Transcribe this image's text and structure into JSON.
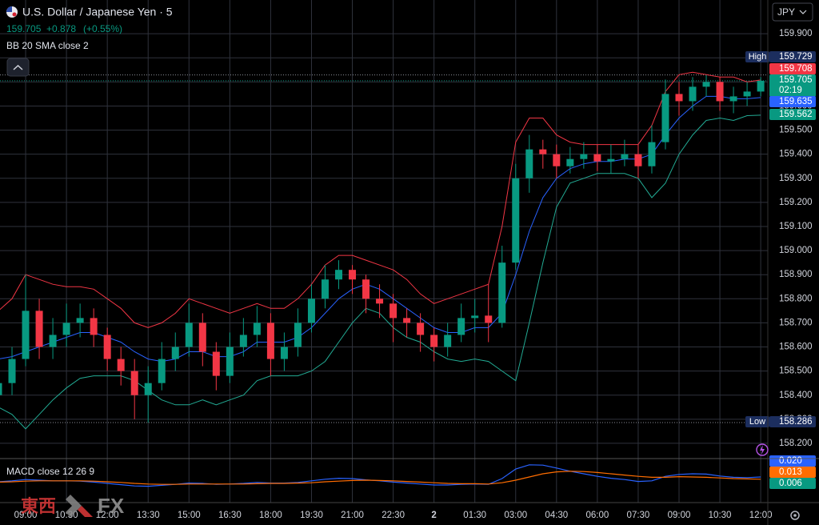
{
  "header": {
    "price": "159.705",
    "change": "+0.878",
    "change_pct": "(+0.55%)",
    "indicator": "BB 20 SMA close 2",
    "currency": "JPY",
    "watermark": "東西",
    "watermark_fx": "FX"
  },
  "chart_data": {
    "type": "candlestick",
    "title": "U.S. Dollar / Japanese Yen · 5",
    "up_color": "#089981",
    "down_color": "#f23645",
    "grid": true,
    "ylim": [
      158.14,
      160.04
    ],
    "yticks": [
      {
        "value": 158.2,
        "label": "158.200"
      },
      {
        "value": 158.3,
        "label": "158.300"
      },
      {
        "value": 158.4,
        "label": "158.400"
      },
      {
        "value": 158.5,
        "label": "158.500"
      },
      {
        "value": 158.6,
        "label": "158.600"
      },
      {
        "value": 158.7,
        "label": "158.700"
      },
      {
        "value": 158.8,
        "label": "158.800"
      },
      {
        "value": 158.9,
        "label": "158.900"
      },
      {
        "value": 159.0,
        "label": "159.000"
      },
      {
        "value": 159.1,
        "label": "159.100"
      },
      {
        "value": 159.2,
        "label": "159.200"
      },
      {
        "value": 159.3,
        "label": "159.300"
      },
      {
        "value": 159.4,
        "label": "159.400"
      },
      {
        "value": 159.5,
        "label": "159.500"
      },
      {
        "value": 159.6,
        "label": "159.600"
      },
      {
        "value": 159.7,
        "label": "159.700"
      },
      {
        "value": 159.8,
        "label": "159.800"
      },
      {
        "value": 159.9,
        "label": "159.900"
      }
    ],
    "categories": [
      null,
      null,
      "09:00",
      null,
      null,
      "10:30",
      null,
      null,
      "12:00",
      null,
      null,
      "13:30",
      null,
      null,
      "15:00",
      null,
      null,
      "16:30",
      null,
      null,
      "18:00",
      null,
      null,
      "19:30",
      null,
      null,
      "21:00",
      null,
      null,
      "22:30",
      null,
      null,
      "2",
      null,
      null,
      "01:30",
      null,
      null,
      "03:00",
      null,
      null,
      "04:30",
      null,
      null,
      "06:00",
      null,
      null,
      "07:30",
      null,
      null,
      "09:00",
      null,
      null,
      "10:30",
      null,
      null,
      "12:00"
    ],
    "open": [
      158.4,
      158.45,
      158.55,
      158.75,
      158.6,
      158.65,
      158.7,
      158.72,
      158.65,
      158.55,
      158.5,
      158.4,
      158.45,
      158.55,
      158.6,
      158.7,
      158.58,
      158.48,
      158.6,
      158.65,
      158.7,
      158.55,
      158.6,
      158.7,
      158.8,
      158.88,
      158.92,
      158.88,
      158.8,
      158.78,
      158.72,
      158.7,
      158.65,
      158.6,
      158.65,
      158.72,
      158.73,
      158.7,
      158.95,
      159.3,
      159.42,
      159.4,
      159.35,
      159.38,
      159.4,
      159.37,
      159.38,
      159.4,
      159.35,
      159.45,
      159.65,
      159.62,
      159.68,
      159.7,
      159.62,
      159.64,
      159.66
    ],
    "high": [
      158.5,
      158.6,
      158.9,
      158.8,
      158.72,
      158.78,
      158.78,
      158.76,
      158.68,
      158.6,
      158.55,
      158.52,
      158.62,
      158.66,
      158.78,
      158.74,
      158.62,
      158.66,
      158.72,
      158.77,
      158.74,
      158.66,
      158.76,
      158.86,
      158.94,
      158.96,
      158.94,
      158.9,
      158.86,
      158.82,
      158.76,
      158.74,
      158.68,
      158.7,
      158.78,
      158.8,
      158.86,
      159.02,
      159.36,
      159.48,
      159.46,
      159.44,
      159.43,
      159.45,
      159.44,
      159.44,
      159.46,
      159.44,
      159.52,
      159.71,
      159.7,
      159.72,
      159.729,
      159.72,
      159.68,
      159.7,
      159.72
    ],
    "low": [
      158.35,
      158.4,
      158.52,
      158.55,
      158.55,
      158.6,
      158.64,
      158.6,
      158.5,
      158.44,
      158.3,
      158.286,
      158.42,
      158.5,
      158.56,
      158.52,
      158.42,
      158.45,
      158.56,
      158.6,
      158.48,
      158.5,
      158.56,
      158.66,
      158.76,
      158.84,
      158.82,
      158.74,
      158.72,
      158.62,
      158.64,
      158.58,
      158.54,
      158.56,
      158.62,
      158.66,
      158.62,
      158.68,
      158.92,
      159.24,
      159.34,
      159.3,
      159.32,
      159.34,
      159.33,
      159.32,
      159.35,
      159.3,
      159.32,
      159.42,
      159.56,
      159.58,
      159.64,
      159.58,
      159.57,
      159.6,
      159.64
    ],
    "close": [
      158.45,
      158.55,
      158.75,
      158.6,
      158.65,
      158.7,
      158.72,
      158.65,
      158.55,
      158.5,
      158.4,
      158.45,
      158.55,
      158.6,
      158.7,
      158.58,
      158.48,
      158.6,
      158.65,
      158.7,
      158.55,
      158.6,
      158.7,
      158.8,
      158.88,
      158.92,
      158.88,
      158.8,
      158.78,
      158.72,
      158.7,
      158.65,
      158.6,
      158.65,
      158.72,
      158.73,
      158.7,
      158.95,
      159.3,
      159.42,
      159.4,
      159.35,
      159.38,
      159.4,
      159.37,
      159.38,
      159.4,
      159.35,
      159.45,
      159.65,
      159.62,
      159.68,
      159.7,
      159.62,
      159.64,
      159.66,
      159.705
    ],
    "bb": {
      "series": [
        {
          "color": "#2962ff",
          "values": [
            158.55,
            158.56,
            158.58,
            158.6,
            158.62,
            158.64,
            158.66,
            158.66,
            158.64,
            158.62,
            158.58,
            158.55,
            158.54,
            158.55,
            158.58,
            158.58,
            158.56,
            158.56,
            158.58,
            158.62,
            158.62,
            158.62,
            158.64,
            158.68,
            158.74,
            158.8,
            158.84,
            158.86,
            158.84,
            158.8,
            158.76,
            158.72,
            158.68,
            158.66,
            158.66,
            158.68,
            158.68,
            158.74,
            158.9,
            159.08,
            159.22,
            159.3,
            159.34,
            159.36,
            159.37,
            159.37,
            159.38,
            159.38,
            159.4,
            159.48,
            159.55,
            159.6,
            159.64,
            159.64,
            159.63,
            159.63,
            159.635
          ]
        },
        {
          "color": "#f23645",
          "values": [
            158.75,
            158.8,
            158.9,
            158.88,
            158.86,
            158.85,
            158.85,
            158.84,
            158.8,
            158.76,
            158.7,
            158.68,
            158.7,
            158.74,
            158.8,
            158.78,
            158.76,
            158.74,
            158.76,
            158.78,
            158.76,
            158.76,
            158.8,
            158.86,
            158.94,
            158.98,
            158.98,
            158.96,
            158.94,
            158.92,
            158.88,
            158.82,
            158.78,
            158.8,
            158.82,
            158.84,
            158.86,
            159.1,
            159.45,
            159.55,
            159.55,
            159.48,
            159.45,
            159.44,
            159.44,
            159.44,
            159.44,
            159.44,
            159.52,
            159.66,
            159.73,
            159.74,
            159.73,
            159.72,
            159.72,
            159.7,
            159.708
          ]
        },
        {
          "color": "#22ab94",
          "values": [
            158.35,
            158.32,
            158.26,
            158.32,
            158.38,
            158.43,
            158.47,
            158.48,
            158.48,
            158.48,
            158.46,
            158.42,
            158.38,
            158.36,
            158.36,
            158.38,
            158.36,
            158.38,
            158.4,
            158.46,
            158.48,
            158.48,
            158.48,
            158.5,
            158.54,
            158.62,
            158.7,
            158.76,
            158.74,
            158.68,
            158.64,
            158.62,
            158.58,
            158.55,
            158.54,
            158.55,
            158.54,
            158.5,
            158.46,
            158.7,
            158.95,
            159.18,
            159.28,
            159.3,
            159.32,
            159.32,
            159.32,
            159.3,
            159.22,
            159.28,
            159.4,
            159.48,
            159.54,
            159.55,
            159.54,
            159.56,
            159.562
          ]
        }
      ]
    },
    "price_labels": [
      {
        "name": "High",
        "value": 159.729,
        "color": "#1c2e5e"
      },
      {
        "value": 159.708,
        "color": "#f23645"
      },
      {
        "value": 159.705,
        "color": "#089981",
        "countdown": "02:19"
      },
      {
        "value": 159.635,
        "color": "#2962ff"
      },
      {
        "value": 159.562,
        "color": "#089981"
      },
      {
        "name": "Low",
        "value": 158.286,
        "color": "#1c2e5e"
      }
    ],
    "macd": {
      "title": "MACD close 12 26 9",
      "ylim": [
        -0.06,
        0.075
      ],
      "series": [
        {
          "color": "#2962ff",
          "values": [
            0.005,
            0.008,
            0.012,
            0.01,
            0.008,
            0.008,
            0.007,
            0.004,
            0.0,
            -0.004,
            -0.008,
            -0.009,
            -0.006,
            -0.003,
            0.001,
            0.0,
            -0.003,
            -0.002,
            0.0,
            0.003,
            0.001,
            0.001,
            0.003,
            0.008,
            0.013,
            0.016,
            0.015,
            0.011,
            0.008,
            0.004,
            0.001,
            -0.002,
            -0.005,
            -0.005,
            -0.003,
            -0.002,
            -0.003,
            0.015,
            0.045,
            0.058,
            0.057,
            0.048,
            0.038,
            0.03,
            0.022,
            0.016,
            0.012,
            0.006,
            0.008,
            0.022,
            0.028,
            0.03,
            0.029,
            0.023,
            0.019,
            0.018,
            0.02
          ]
        },
        {
          "color": "#ff6d00",
          "values": [
            0.004,
            0.005,
            0.007,
            0.008,
            0.008,
            0.008,
            0.008,
            0.007,
            0.005,
            0.003,
            0.0,
            -0.002,
            -0.003,
            -0.003,
            -0.002,
            -0.002,
            -0.002,
            -0.002,
            -0.002,
            -0.001,
            0.0,
            0.0,
            0.001,
            0.002,
            0.005,
            0.007,
            0.009,
            0.01,
            0.009,
            0.008,
            0.006,
            0.004,
            0.002,
            0.0,
            -0.001,
            -0.001,
            -0.002,
            0.002,
            0.01,
            0.02,
            0.03,
            0.036,
            0.038,
            0.037,
            0.034,
            0.03,
            0.026,
            0.022,
            0.019,
            0.019,
            0.021,
            0.02,
            0.019,
            0.017,
            0.015,
            0.014,
            0.013
          ]
        }
      ],
      "labels": [
        {
          "value": 0.02,
          "label": "0.020",
          "color": "#2962ff"
        },
        {
          "value": 0.013,
          "label": "0.013",
          "color": "#ff6d00"
        },
        {
          "value": 0.006,
          "label": "0.006",
          "color": "#089981"
        }
      ]
    }
  }
}
